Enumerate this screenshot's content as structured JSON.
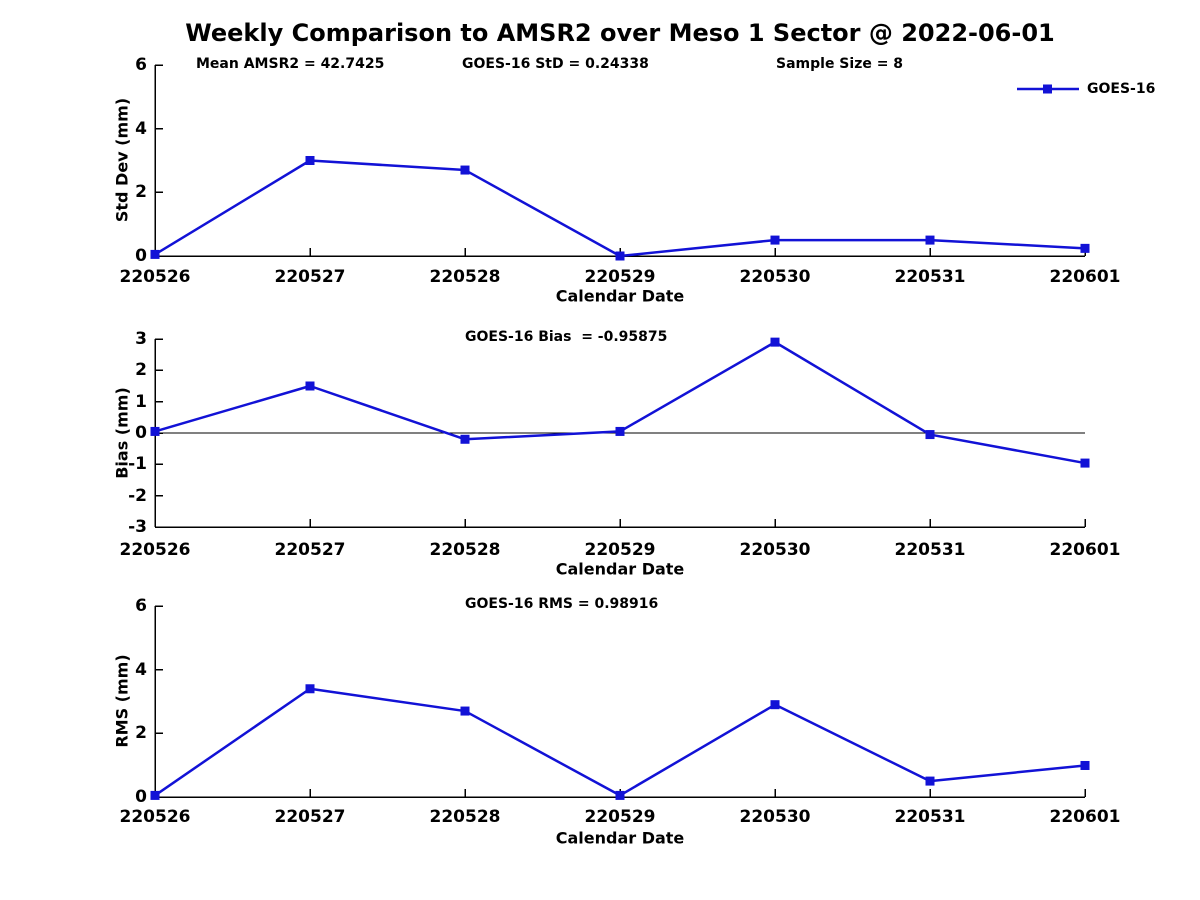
{
  "title": "Weekly Comparison to AMSR2 over Meso 1 Sector @ 2022-06-01",
  "colors": {
    "line": "#1212d6",
    "axis": "#000000",
    "text": "#000000",
    "background": "#ffffff"
  },
  "legend": {
    "label": "GOES-16",
    "marker": "filled-square",
    "position": "top-right-of-first-subplot"
  },
  "chart_data": [
    {
      "type": "line",
      "subplot": "std-dev",
      "annotations": [
        "Mean AMSR2 = 42.7425",
        "GOES-16 StD = 0.24338",
        "Sample Size = 8"
      ],
      "categories": [
        "220526",
        "220527",
        "220528",
        "220529",
        "220530",
        "220531",
        "220601"
      ],
      "series": [
        {
          "name": "GOES-16",
          "values": [
            0.05,
            3.0,
            2.7,
            0.0,
            0.5,
            0.5,
            0.24
          ]
        }
      ],
      "xlabel": "Calendar Date",
      "ylabel": "Std Dev (mm)",
      "ylim": [
        0,
        6
      ],
      "yticks": [
        0,
        2,
        4,
        6
      ],
      "zero_line": false,
      "grid": false
    },
    {
      "type": "line",
      "subplot": "bias",
      "annotations": [
        "GOES-16 Bias  = -0.95875"
      ],
      "categories": [
        "220526",
        "220527",
        "220528",
        "220529",
        "220530",
        "220531",
        "220601"
      ],
      "series": [
        {
          "name": "GOES-16",
          "values": [
            0.05,
            1.5,
            -0.2,
            0.05,
            2.9,
            -0.05,
            -0.96
          ]
        }
      ],
      "xlabel": "Calendar Date",
      "ylabel": "Bias (mm)",
      "ylim": [
        -3,
        3
      ],
      "yticks": [
        -3,
        -2,
        -1,
        0,
        1,
        2,
        3
      ],
      "zero_line": true,
      "grid": false
    },
    {
      "type": "line",
      "subplot": "rms",
      "annotations": [
        "GOES-16 RMS = 0.98916"
      ],
      "categories": [
        "220526",
        "220527",
        "220528",
        "220529",
        "220530",
        "220531",
        "220601"
      ],
      "series": [
        {
          "name": "GOES-16",
          "values": [
            0.05,
            3.4,
            2.7,
            0.05,
            2.9,
            0.5,
            0.99
          ]
        }
      ],
      "xlabel": "Calendar Date",
      "ylabel": "RMS (mm)",
      "ylim": [
        0,
        6
      ],
      "yticks": [
        0,
        2,
        4,
        6
      ],
      "zero_line": false,
      "grid": false
    }
  ]
}
